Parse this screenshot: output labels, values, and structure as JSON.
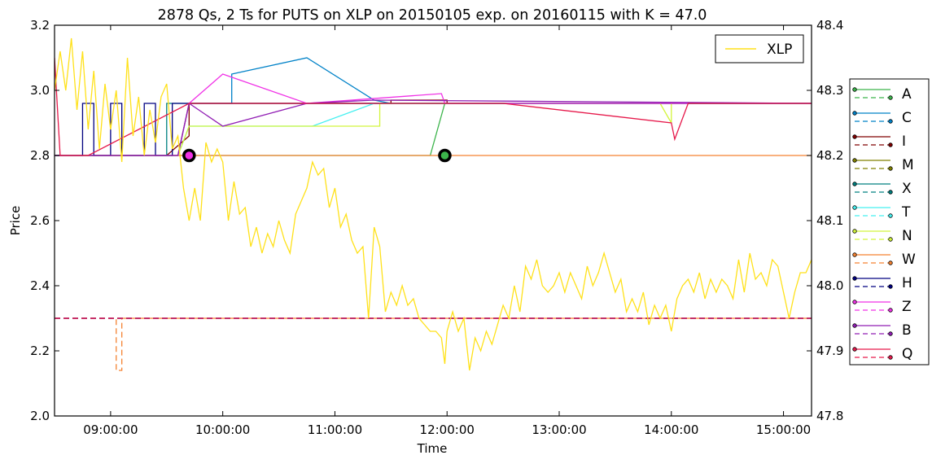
{
  "chart_data": {
    "type": "line",
    "title": "2878 Qs, 2 Ts for PUTS on XLP on 20150105 exp. on 20160115 with K = 47.0",
    "xlabel": "Time",
    "ylabel": "Price",
    "xlim_hours": [
      8.5,
      15.25
    ],
    "ylim": [
      2.0,
      3.2
    ],
    "y2lim": [
      47.8,
      48.4
    ],
    "x_ticks": [
      {
        "h": 9,
        "label": "09:00:00"
      },
      {
        "h": 10,
        "label": "10:00:00"
      },
      {
        "h": 11,
        "label": "11:00:00"
      },
      {
        "h": 12,
        "label": "12:00:00"
      },
      {
        "h": 13,
        "label": "13:00:00"
      },
      {
        "h": 14,
        "label": "14:00:00"
      },
      {
        "h": 15,
        "label": "15:00:00"
      }
    ],
    "y_ticks": [
      {
        "v": 2.0,
        "label": "2.0"
      },
      {
        "v": 2.2,
        "label": "2.2"
      },
      {
        "v": 2.4,
        "label": "2.4"
      },
      {
        "v": 2.6,
        "label": "2.6"
      },
      {
        "v": 2.8,
        "label": "2.8"
      },
      {
        "v": 3.0,
        "label": "3.0"
      },
      {
        "v": 3.2,
        "label": "3.2"
      }
    ],
    "y2_ticks": [
      {
        "v": 47.8,
        "label": "47.8"
      },
      {
        "v": 47.9,
        "label": "47.9"
      },
      {
        "v": 48.0,
        "label": "48.0"
      },
      {
        "v": 48.1,
        "label": "48.1"
      },
      {
        "v": 48.2,
        "label": "48.2"
      },
      {
        "v": 48.3,
        "label": "48.3"
      },
      {
        "v": 48.4,
        "label": "48.4"
      }
    ],
    "inner_legend": {
      "label": "XLP",
      "color": "#FFE119",
      "location": "top-right"
    },
    "outer_legend_location": "right",
    "xlp": [
      [
        8.5,
        48.3
      ],
      [
        8.55,
        48.36
      ],
      [
        8.6,
        48.3
      ],
      [
        8.65,
        48.38
      ],
      [
        8.7,
        48.27
      ],
      [
        8.75,
        48.36
      ],
      [
        8.8,
        48.24
      ],
      [
        8.85,
        48.33
      ],
      [
        8.9,
        48.21
      ],
      [
        8.95,
        48.31
      ],
      [
        9.0,
        48.24
      ],
      [
        9.05,
        48.3
      ],
      [
        9.1,
        48.19
      ],
      [
        9.15,
        48.35
      ],
      [
        9.2,
        48.23
      ],
      [
        9.25,
        48.29
      ],
      [
        9.3,
        48.2
      ],
      [
        9.35,
        48.27
      ],
      [
        9.4,
        48.22
      ],
      [
        9.45,
        48.29
      ],
      [
        9.5,
        48.31
      ],
      [
        9.55,
        48.21
      ],
      [
        9.6,
        48.23
      ],
      [
        9.65,
        48.15
      ],
      [
        9.7,
        48.1
      ],
      [
        9.75,
        48.15
      ],
      [
        9.8,
        48.1
      ],
      [
        9.85,
        48.22
      ],
      [
        9.9,
        48.19
      ],
      [
        9.95,
        48.21
      ],
      [
        10.0,
        48.19
      ],
      [
        10.05,
        48.1
      ],
      [
        10.1,
        48.16
      ],
      [
        10.15,
        48.11
      ],
      [
        10.2,
        48.12
      ],
      [
        10.25,
        48.06
      ],
      [
        10.3,
        48.09
      ],
      [
        10.35,
        48.05
      ],
      [
        10.4,
        48.08
      ],
      [
        10.45,
        48.06
      ],
      [
        10.5,
        48.1
      ],
      [
        10.55,
        48.07
      ],
      [
        10.6,
        48.05
      ],
      [
        10.65,
        48.11
      ],
      [
        10.7,
        48.13
      ],
      [
        10.75,
        48.15
      ],
      [
        10.8,
        48.19
      ],
      [
        10.85,
        48.17
      ],
      [
        10.9,
        48.18
      ],
      [
        10.95,
        48.12
      ],
      [
        11.0,
        48.15
      ],
      [
        11.05,
        48.09
      ],
      [
        11.1,
        48.11
      ],
      [
        11.15,
        48.07
      ],
      [
        11.2,
        48.05
      ],
      [
        11.25,
        48.06
      ],
      [
        11.3,
        47.95
      ],
      [
        11.35,
        48.09
      ],
      [
        11.4,
        48.06
      ],
      [
        11.45,
        47.96
      ],
      [
        11.5,
        47.99
      ],
      [
        11.55,
        47.97
      ],
      [
        11.6,
        48.0
      ],
      [
        11.65,
        47.97
      ],
      [
        11.7,
        47.98
      ],
      [
        11.75,
        47.95
      ],
      [
        11.8,
        47.94
      ],
      [
        11.85,
        47.93
      ],
      [
        11.9,
        47.93
      ],
      [
        11.95,
        47.92
      ],
      [
        11.98,
        47.88
      ],
      [
        12.0,
        47.93
      ],
      [
        12.05,
        47.96
      ],
      [
        12.1,
        47.93
      ],
      [
        12.15,
        47.95
      ],
      [
        12.2,
        47.87
      ],
      [
        12.25,
        47.92
      ],
      [
        12.3,
        47.9
      ],
      [
        12.35,
        47.93
      ],
      [
        12.4,
        47.91
      ],
      [
        12.45,
        47.94
      ],
      [
        12.5,
        47.97
      ],
      [
        12.55,
        47.95
      ],
      [
        12.6,
        48.0
      ],
      [
        12.65,
        47.96
      ],
      [
        12.7,
        48.03
      ],
      [
        12.75,
        48.01
      ],
      [
        12.8,
        48.04
      ],
      [
        12.85,
        48.0
      ],
      [
        12.9,
        47.99
      ],
      [
        12.95,
        48.0
      ],
      [
        13.0,
        48.02
      ],
      [
        13.05,
        47.99
      ],
      [
        13.1,
        48.02
      ],
      [
        13.15,
        48.0
      ],
      [
        13.2,
        47.98
      ],
      [
        13.25,
        48.03
      ],
      [
        13.3,
        48.0
      ],
      [
        13.35,
        48.02
      ],
      [
        13.4,
        48.05
      ],
      [
        13.45,
        48.02
      ],
      [
        13.5,
        47.99
      ],
      [
        13.55,
        48.01
      ],
      [
        13.6,
        47.96
      ],
      [
        13.65,
        47.98
      ],
      [
        13.7,
        47.96
      ],
      [
        13.75,
        47.99
      ],
      [
        13.8,
        47.94
      ],
      [
        13.85,
        47.97
      ],
      [
        13.9,
        47.95
      ],
      [
        13.95,
        47.97
      ],
      [
        14.0,
        47.93
      ],
      [
        14.05,
        47.98
      ],
      [
        14.1,
        48.0
      ],
      [
        14.15,
        48.01
      ],
      [
        14.2,
        47.99
      ],
      [
        14.25,
        48.02
      ],
      [
        14.3,
        47.98
      ],
      [
        14.35,
        48.01
      ],
      [
        14.4,
        47.99
      ],
      [
        14.45,
        48.01
      ],
      [
        14.5,
        48.0
      ],
      [
        14.55,
        47.98
      ],
      [
        14.6,
        48.04
      ],
      [
        14.65,
        47.99
      ],
      [
        14.7,
        48.05
      ],
      [
        14.75,
        48.01
      ],
      [
        14.8,
        48.02
      ],
      [
        14.85,
        48.0
      ],
      [
        14.9,
        48.04
      ],
      [
        14.95,
        48.03
      ],
      [
        15.0,
        47.99
      ],
      [
        15.05,
        47.95
      ],
      [
        15.1,
        47.99
      ],
      [
        15.15,
        48.02
      ],
      [
        15.2,
        48.02
      ],
      [
        15.25,
        48.04
      ]
    ],
    "series": [
      {
        "name": "A",
        "color": "#3CB44B",
        "bid": [
          [
            8.5,
            2.8
          ],
          [
            11.85,
            2.8
          ],
          [
            11.98,
            2.96
          ],
          [
            15.25,
            2.96
          ]
        ],
        "ask": [
          [
            8.5,
            2.3
          ],
          [
            15.25,
            2.3
          ]
        ]
      },
      {
        "name": "C",
        "color": "#0082C8",
        "bid": [
          [
            8.5,
            2.8
          ],
          [
            9.6,
            2.8
          ],
          [
            9.7,
            2.96
          ],
          [
            10.08,
            2.96
          ],
          [
            10.08,
            3.05
          ],
          [
            10.75,
            3.1
          ],
          [
            11.35,
            2.97
          ],
          [
            11.5,
            2.96
          ],
          [
            15.25,
            2.96
          ]
        ],
        "ask": [
          [
            8.5,
            2.3
          ],
          [
            15.25,
            2.3
          ]
        ]
      },
      {
        "name": "I",
        "color": "#800000",
        "bid": [
          [
            8.5,
            2.8
          ],
          [
            9.5,
            2.8
          ],
          [
            9.7,
            2.86
          ],
          [
            9.7,
            2.96
          ],
          [
            11.5,
            2.96
          ],
          [
            11.5,
            2.97
          ],
          [
            12.0,
            2.97
          ],
          [
            12.0,
            2.96
          ],
          [
            15.25,
            2.96
          ]
        ],
        "ask": [
          [
            8.5,
            2.3
          ],
          [
            15.25,
            2.3
          ]
        ]
      },
      {
        "name": "M",
        "color": "#808000",
        "bid": [
          [
            8.5,
            2.8
          ],
          [
            9.6,
            2.8
          ],
          [
            9.7,
            2.96
          ],
          [
            15.25,
            2.96
          ]
        ],
        "ask": [
          [
            8.5,
            2.3
          ],
          [
            15.25,
            2.3
          ]
        ]
      },
      {
        "name": "X",
        "color": "#008080",
        "bid": [
          [
            8.5,
            2.8
          ],
          [
            9.5,
            2.8
          ],
          [
            9.5,
            2.96
          ],
          [
            15.25,
            2.96
          ]
        ],
        "ask": [
          [
            8.5,
            2.3
          ],
          [
            15.25,
            2.3
          ]
        ]
      },
      {
        "name": "T",
        "color": "#46F0F0",
        "bid": [
          [
            8.5,
            2.8
          ],
          [
            9.6,
            2.8
          ],
          [
            9.7,
            2.89
          ],
          [
            10.8,
            2.89
          ],
          [
            11.35,
            2.96
          ],
          [
            15.25,
            2.96
          ]
        ],
        "ask": [
          [
            8.5,
            2.3
          ],
          [
            15.25,
            2.3
          ]
        ]
      },
      {
        "name": "N",
        "color": "#D2F53C",
        "bid": [
          [
            8.5,
            2.8
          ],
          [
            9.6,
            2.8
          ],
          [
            9.7,
            2.89
          ],
          [
            11.4,
            2.89
          ],
          [
            11.4,
            2.96
          ],
          [
            13.9,
            2.96
          ],
          [
            14.0,
            2.9
          ],
          [
            14.0,
            2.96
          ],
          [
            15.25,
            2.96
          ]
        ],
        "ask": [
          [
            8.5,
            2.3
          ],
          [
            15.25,
            2.3
          ]
        ]
      },
      {
        "name": "W",
        "color": "#F58231",
        "bid": [
          [
            8.5,
            2.8
          ],
          [
            15.25,
            2.8
          ]
        ],
        "ask": [
          [
            8.5,
            2.3
          ],
          [
            9.05,
            2.3
          ],
          [
            9.05,
            2.14
          ],
          [
            9.1,
            2.14
          ],
          [
            9.1,
            2.3
          ],
          [
            15.25,
            2.3
          ]
        ]
      },
      {
        "name": "H",
        "color": "#000080",
        "bid": [
          [
            8.5,
            2.8
          ],
          [
            8.75,
            2.8
          ],
          [
            8.75,
            2.96
          ],
          [
            8.85,
            2.96
          ],
          [
            8.85,
            2.8
          ],
          [
            9.0,
            2.8
          ],
          [
            9.0,
            2.96
          ],
          [
            9.1,
            2.96
          ],
          [
            9.1,
            2.8
          ],
          [
            9.3,
            2.8
          ],
          [
            9.3,
            2.96
          ],
          [
            9.4,
            2.96
          ],
          [
            9.4,
            2.8
          ],
          [
            9.55,
            2.8
          ],
          [
            9.55,
            2.96
          ],
          [
            15.25,
            2.96
          ]
        ],
        "ask": [
          [
            8.5,
            2.3
          ],
          [
            15.25,
            2.3
          ]
        ]
      },
      {
        "name": "Z",
        "color": "#F032E6",
        "bid": [
          [
            8.5,
            2.8
          ],
          [
            9.6,
            2.8
          ],
          [
            9.7,
            2.96
          ],
          [
            10.0,
            3.05
          ],
          [
            10.75,
            2.96
          ],
          [
            11.95,
            2.99
          ],
          [
            11.98,
            2.96
          ],
          [
            15.25,
            2.96
          ]
        ],
        "ask": [
          [
            8.5,
            2.3
          ],
          [
            15.25,
            2.3
          ]
        ]
      },
      {
        "name": "B",
        "color": "#911EB4",
        "bid": [
          [
            8.5,
            2.8
          ],
          [
            9.6,
            2.8
          ],
          [
            9.7,
            2.96
          ],
          [
            10.0,
            2.89
          ],
          [
            10.75,
            2.96
          ],
          [
            11.35,
            2.97
          ],
          [
            15.25,
            2.96
          ]
        ],
        "ask": [
          [
            8.5,
            2.3
          ],
          [
            15.25,
            2.3
          ]
        ]
      },
      {
        "name": "Q",
        "color": "#E6194B",
        "bid": [
          [
            8.5,
            3.1
          ],
          [
            8.55,
            2.8
          ],
          [
            8.8,
            2.8
          ],
          [
            9.7,
            2.96
          ],
          [
            12.5,
            2.96
          ],
          [
            14.0,
            2.9
          ],
          [
            14.03,
            2.85
          ],
          [
            14.15,
            2.96
          ],
          [
            15.25,
            2.96
          ]
        ],
        "ask": [
          [
            8.5,
            2.3
          ],
          [
            15.25,
            2.3
          ]
        ]
      }
    ],
    "trades": [
      {
        "h": 9.7,
        "price": 2.8,
        "fill": "#F032E6"
      },
      {
        "h": 11.98,
        "price": 2.8,
        "fill": "#3CB44B"
      }
    ]
  }
}
